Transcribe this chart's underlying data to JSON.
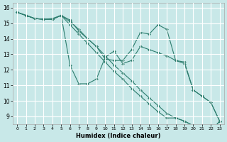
{
  "xlabel": "Humidex (Indice chaleur)",
  "background_color": "#c8e8e8",
  "grid_color": "#ffffff",
  "line_color": "#2d7d6e",
  "xlim": [
    -0.5,
    23.5
  ],
  "ylim": [
    8.5,
    16.3
  ],
  "xticks": [
    0,
    1,
    2,
    3,
    4,
    5,
    6,
    7,
    8,
    9,
    10,
    11,
    12,
    13,
    14,
    15,
    16,
    17,
    18,
    19,
    20,
    21,
    22,
    23
  ],
  "yticks": [
    9,
    10,
    11,
    12,
    13,
    14,
    15,
    16
  ],
  "lines": [
    {
      "x": [
        0,
        1,
        2,
        3,
        4,
        5,
        6,
        7,
        8,
        9,
        10,
        11,
        12,
        13,
        14,
        15,
        16,
        17,
        18,
        19,
        20,
        21,
        22,
        23
      ],
      "y": [
        15.7,
        15.5,
        15.3,
        15.25,
        15.25,
        15.5,
        15.2,
        14.5,
        14.0,
        13.5,
        12.7,
        12.6,
        12.6,
        13.3,
        14.4,
        14.3,
        14.9,
        14.6,
        12.6,
        12.5,
        10.7,
        10.3,
        9.9,
        8.7
      ]
    },
    {
      "x": [
        0,
        1,
        2,
        3,
        4,
        5,
        6,
        7,
        8,
        9,
        10,
        11,
        12,
        13,
        14,
        15,
        16,
        17,
        18,
        19,
        20,
        21,
        22,
        23
      ],
      "y": [
        15.7,
        15.5,
        15.3,
        15.25,
        15.25,
        15.5,
        12.3,
        11.1,
        11.1,
        11.4,
        12.8,
        13.2,
        12.4,
        12.6,
        13.5,
        13.3,
        13.1,
        12.9,
        12.6,
        12.4,
        10.7,
        10.3,
        9.9,
        8.7
      ]
    },
    {
      "x": [
        0,
        1,
        2,
        3,
        4,
        5,
        6,
        7,
        8,
        9,
        10,
        11,
        12,
        13,
        14,
        15,
        16,
        17,
        18,
        19,
        20,
        21,
        22,
        23
      ],
      "y": [
        15.7,
        15.5,
        15.3,
        15.25,
        15.25,
        15.5,
        14.9,
        14.3,
        13.7,
        13.1,
        12.5,
        11.9,
        11.4,
        10.8,
        10.3,
        9.8,
        9.3,
        8.9,
        8.9,
        8.7,
        8.4,
        8.2,
        8.0,
        8.7
      ]
    },
    {
      "x": [
        0,
        1,
        2,
        3,
        4,
        5,
        6,
        7,
        8,
        9,
        10,
        11,
        12,
        13,
        14,
        15,
        16,
        17,
        18,
        19,
        20,
        21,
        22,
        23
      ],
      "y": [
        15.7,
        15.5,
        15.3,
        15.25,
        15.3,
        15.5,
        15.1,
        14.6,
        14.0,
        13.5,
        12.9,
        12.3,
        11.8,
        11.3,
        10.7,
        10.2,
        9.7,
        9.2,
        8.9,
        8.7,
        8.4,
        8.2,
        8.0,
        8.7
      ]
    }
  ]
}
